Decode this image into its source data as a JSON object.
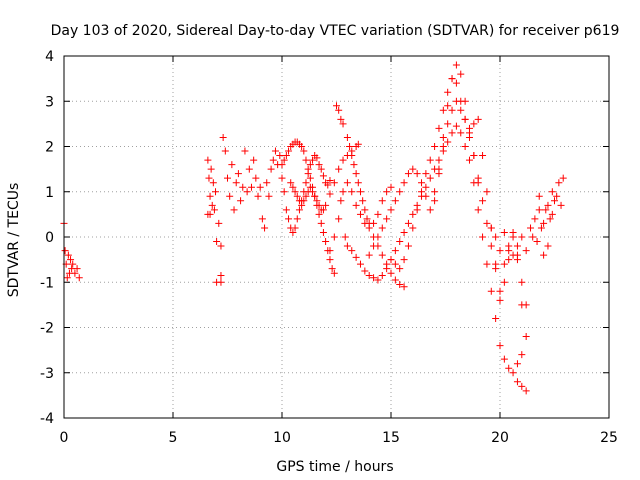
{
  "chart_data": {
    "type": "scatter",
    "title": "Day 103 of 2020, Sidereal Day-to-day VTEC variation (SDTVAR) for receiver p619",
    "xlabel": "GPS time / hours",
    "ylabel": "SDTVAR / TECUs",
    "xlim": [
      0,
      25
    ],
    "ylim": [
      -4,
      4
    ],
    "xticks": [
      "0",
      "5",
      "10",
      "15",
      "20",
      "25"
    ],
    "yticks": [
      "4",
      "3",
      "2",
      "1",
      "0",
      "-1",
      "-2",
      "-3",
      "-4"
    ],
    "grid": true,
    "marker": "+",
    "color": "#ff0000",
    "series": [
      {
        "name": "p619",
        "points": [
          [
            0.0,
            0.3
          ],
          [
            0.05,
            -0.3
          ],
          [
            0.1,
            -0.6
          ],
          [
            0.15,
            -0.9
          ],
          [
            0.2,
            -0.4
          ],
          [
            0.25,
            -0.8
          ],
          [
            0.3,
            -0.5
          ],
          [
            0.35,
            -0.7
          ],
          [
            0.4,
            -0.6
          ],
          [
            0.5,
            -0.8
          ],
          [
            0.6,
            -0.7
          ],
          [
            0.7,
            -0.9
          ],
          [
            6.6,
            0.5
          ],
          [
            6.6,
            1.7
          ],
          [
            6.65,
            1.3
          ],
          [
            6.7,
            0.9
          ],
          [
            6.7,
            0.5
          ],
          [
            6.75,
            1.5
          ],
          [
            6.8,
            0.7
          ],
          [
            6.85,
            1.2
          ],
          [
            6.9,
            0.6
          ],
          [
            6.95,
            1.0
          ],
          [
            7.0,
            -0.1
          ],
          [
            7.1,
            0.3
          ],
          [
            7.2,
            -0.2
          ],
          [
            7.0,
            -1.0
          ],
          [
            7.2,
            -1.0
          ],
          [
            7.2,
            -0.85
          ],
          [
            7.3,
            2.2
          ],
          [
            7.4,
            1.9
          ],
          [
            7.5,
            1.3
          ],
          [
            7.6,
            0.9
          ],
          [
            7.7,
            1.6
          ],
          [
            7.8,
            0.6
          ],
          [
            7.9,
            1.2
          ],
          [
            8.0,
            1.4
          ],
          [
            8.1,
            0.8
          ],
          [
            8.2,
            1.1
          ],
          [
            8.3,
            1.9
          ],
          [
            8.4,
            1.0
          ],
          [
            8.5,
            1.5
          ],
          [
            8.6,
            1.1
          ],
          [
            8.7,
            1.7
          ],
          [
            8.8,
            1.3
          ],
          [
            8.9,
            0.9
          ],
          [
            9.0,
            1.1
          ],
          [
            9.1,
            0.4
          ],
          [
            9.2,
            0.2
          ],
          [
            9.3,
            1.2
          ],
          [
            9.4,
            0.9
          ],
          [
            9.5,
            1.5
          ],
          [
            9.6,
            1.7
          ],
          [
            9.7,
            1.9
          ],
          [
            9.8,
            1.6
          ],
          [
            9.9,
            1.8
          ],
          [
            10.0,
            1.3
          ],
          [
            10.1,
            1.0
          ],
          [
            10.2,
            0.6
          ],
          [
            10.3,
            0.4
          ],
          [
            10.4,
            0.2
          ],
          [
            10.5,
            0.1
          ],
          [
            10.6,
            0.2
          ],
          [
            10.7,
            0.4
          ],
          [
            10.8,
            0.6
          ],
          [
            10.9,
            0.8
          ],
          [
            11.0,
            1.0
          ],
          [
            11.1,
            1.2
          ],
          [
            11.2,
            1.4
          ],
          [
            11.3,
            1.6
          ],
          [
            11.4,
            1.7
          ],
          [
            11.5,
            1.8
          ],
          [
            11.6,
            1.75
          ],
          [
            11.7,
            1.6
          ],
          [
            11.8,
            1.5
          ],
          [
            11.9,
            1.35
          ],
          [
            12.0,
            1.2
          ],
          [
            12.1,
            1.15
          ],
          [
            12.2,
            1.25
          ],
          [
            10.0,
            1.6
          ],
          [
            10.1,
            1.7
          ],
          [
            10.2,
            1.8
          ],
          [
            10.3,
            1.9
          ],
          [
            10.4,
            2.0
          ],
          [
            10.5,
            2.05
          ],
          [
            10.6,
            2.1
          ],
          [
            10.7,
            2.1
          ],
          [
            10.8,
            2.05
          ],
          [
            10.9,
            2.0
          ],
          [
            11.0,
            1.9
          ],
          [
            11.1,
            1.7
          ],
          [
            11.2,
            1.5
          ],
          [
            11.3,
            1.3
          ],
          [
            11.4,
            1.1
          ],
          [
            11.5,
            0.9
          ],
          [
            11.6,
            0.7
          ],
          [
            11.7,
            0.5
          ],
          [
            11.8,
            0.3
          ],
          [
            11.9,
            0.1
          ],
          [
            12.0,
            -0.1
          ],
          [
            12.1,
            -0.3
          ],
          [
            12.2,
            -0.5
          ],
          [
            12.3,
            -0.7
          ],
          [
            12.4,
            -0.8
          ],
          [
            10.4,
            1.2
          ],
          [
            10.5,
            1.1
          ],
          [
            10.6,
            1.0
          ],
          [
            10.7,
            0.9
          ],
          [
            10.8,
            0.8
          ],
          [
            10.9,
            0.7
          ],
          [
            11.0,
            0.8
          ],
          [
            11.1,
            0.9
          ],
          [
            11.2,
            1.0
          ],
          [
            11.3,
            1.1
          ],
          [
            11.4,
            1.0
          ],
          [
            11.5,
            0.9
          ],
          [
            11.6,
            0.8
          ],
          [
            11.7,
            0.7
          ],
          [
            11.8,
            0.6
          ],
          [
            11.9,
            0.6
          ],
          [
            12.0,
            0.7
          ],
          [
            12.2,
            0.95
          ],
          [
            12.4,
            1.2
          ],
          [
            12.6,
            1.5
          ],
          [
            12.8,
            1.7
          ],
          [
            13.0,
            1.8
          ],
          [
            13.2,
            1.9
          ],
          [
            13.4,
            2.0
          ],
          [
            13.5,
            2.05
          ],
          [
            12.2,
            -0.3
          ],
          [
            12.4,
            0.0
          ],
          [
            12.6,
            0.4
          ],
          [
            12.7,
            0.8
          ],
          [
            12.8,
            1.0
          ],
          [
            13.0,
            1.2
          ],
          [
            13.2,
            1.0
          ],
          [
            13.4,
            0.7
          ],
          [
            13.6,
            0.5
          ],
          [
            13.8,
            0.3
          ],
          [
            14.0,
            0.2
          ],
          [
            14.2,
            0.0
          ],
          [
            14.4,
            -0.2
          ],
          [
            14.6,
            -0.4
          ],
          [
            14.8,
            -0.6
          ],
          [
            15.0,
            -0.8
          ],
          [
            15.2,
            -0.95
          ],
          [
            15.4,
            -1.05
          ],
          [
            15.6,
            -1.1
          ],
          [
            12.5,
            2.9
          ],
          [
            12.6,
            2.8
          ],
          [
            12.7,
            2.6
          ],
          [
            12.8,
            2.5
          ],
          [
            13.0,
            2.2
          ],
          [
            13.1,
            2.0
          ],
          [
            13.2,
            1.8
          ],
          [
            13.3,
            1.6
          ],
          [
            13.4,
            1.4
          ],
          [
            13.5,
            1.2
          ],
          [
            13.6,
            1.0
          ],
          [
            13.7,
            0.8
          ],
          [
            13.8,
            0.6
          ],
          [
            13.9,
            0.4
          ],
          [
            14.0,
            0.3
          ],
          [
            14.2,
            0.3
          ],
          [
            14.4,
            0.5
          ],
          [
            14.6,
            0.8
          ],
          [
            14.8,
            1.0
          ],
          [
            15.0,
            1.1
          ],
          [
            12.9,
            0.0
          ],
          [
            13.0,
            -0.2
          ],
          [
            13.2,
            -0.3
          ],
          [
            13.4,
            -0.45
          ],
          [
            13.6,
            -0.6
          ],
          [
            13.8,
            -0.75
          ],
          [
            14.0,
            -0.85
          ],
          [
            14.2,
            -0.9
          ],
          [
            14.4,
            -0.95
          ],
          [
            14.6,
            -0.85
          ],
          [
            14.8,
            -0.7
          ],
          [
            15.0,
            -0.5
          ],
          [
            15.2,
            -0.3
          ],
          [
            15.4,
            -0.1
          ],
          [
            15.6,
            0.1
          ],
          [
            15.8,
            0.3
          ],
          [
            16.0,
            0.5
          ],
          [
            16.2,
            0.7
          ],
          [
            16.4,
            0.9
          ],
          [
            16.6,
            1.1
          ],
          [
            16.8,
            1.3
          ],
          [
            17.0,
            1.5
          ],
          [
            17.2,
            1.7
          ],
          [
            17.4,
            1.9
          ],
          [
            17.6,
            2.1
          ],
          [
            17.8,
            2.3
          ],
          [
            18.0,
            2.45
          ],
          [
            18.2,
            2.3
          ],
          [
            18.4,
            2.0
          ],
          [
            18.6,
            1.7
          ],
          [
            18.8,
            1.2
          ],
          [
            19.0,
            0.6
          ],
          [
            19.2,
            0.0
          ],
          [
            19.4,
            -0.6
          ],
          [
            19.6,
            -1.2
          ],
          [
            19.8,
            -1.8
          ],
          [
            14.0,
            -0.4
          ],
          [
            14.2,
            -0.2
          ],
          [
            14.4,
            0.0
          ],
          [
            14.6,
            0.2
          ],
          [
            14.8,
            0.4
          ],
          [
            15.0,
            0.6
          ],
          [
            15.2,
            0.8
          ],
          [
            15.4,
            1.0
          ],
          [
            15.6,
            1.2
          ],
          [
            15.8,
            1.4
          ],
          [
            16.0,
            1.5
          ],
          [
            16.2,
            1.4
          ],
          [
            16.4,
            1.2
          ],
          [
            16.6,
            0.9
          ],
          [
            16.8,
            0.6
          ],
          [
            17.0,
            0.8
          ],
          [
            17.2,
            1.5
          ],
          [
            17.4,
            2.2
          ],
          [
            17.6,
            2.9
          ],
          [
            17.8,
            3.5
          ],
          [
            18.0,
            3.8
          ],
          [
            18.2,
            3.6
          ],
          [
            18.4,
            3.0
          ],
          [
            18.6,
            2.4
          ],
          [
            18.8,
            1.8
          ],
          [
            19.0,
            1.2
          ],
          [
            15.0,
            -0.5
          ],
          [
            15.2,
            -0.6
          ],
          [
            15.4,
            -0.7
          ],
          [
            15.6,
            -0.5
          ],
          [
            15.8,
            -0.2
          ],
          [
            16.0,
            0.2
          ],
          [
            16.2,
            0.6
          ],
          [
            16.4,
            1.0
          ],
          [
            16.6,
            1.4
          ],
          [
            16.8,
            1.7
          ],
          [
            17.0,
            2.0
          ],
          [
            17.2,
            2.4
          ],
          [
            17.4,
            2.8
          ],
          [
            17.6,
            3.2
          ],
          [
            17.8,
            3.5
          ],
          [
            18.0,
            3.4
          ],
          [
            18.2,
            3.0
          ],
          [
            18.4,
            2.6
          ],
          [
            18.6,
            2.2
          ],
          [
            18.8,
            1.8
          ],
          [
            19.0,
            1.3
          ],
          [
            19.2,
            0.8
          ],
          [
            19.4,
            0.3
          ],
          [
            19.6,
            -0.2
          ],
          [
            19.8,
            -0.7
          ],
          [
            20.0,
            -1.2
          ],
          [
            17.0,
            1.0
          ],
          [
            17.2,
            1.4
          ],
          [
            17.4,
            2.0
          ],
          [
            17.6,
            2.5
          ],
          [
            17.8,
            2.8
          ],
          [
            18.0,
            3.0
          ],
          [
            18.2,
            2.8
          ],
          [
            18.4,
            2.6
          ],
          [
            18.6,
            2.3
          ],
          [
            18.8,
            2.5
          ],
          [
            19.0,
            2.6
          ],
          [
            19.2,
            1.8
          ],
          [
            19.4,
            1.0
          ],
          [
            19.6,
            0.2
          ],
          [
            19.8,
            -0.6
          ],
          [
            20.0,
            -1.4
          ],
          [
            20.2,
            -1.0
          ],
          [
            20.4,
            -0.5
          ],
          [
            20.6,
            0.0
          ],
          [
            20.8,
            -0.5
          ],
          [
            21.0,
            -1.0
          ],
          [
            21.2,
            -1.5
          ],
          [
            19.6,
            0.2
          ],
          [
            19.8,
            0.0
          ],
          [
            20.0,
            -0.3
          ],
          [
            20.2,
            -0.6
          ],
          [
            20.4,
            -0.3
          ],
          [
            20.6,
            0.1
          ],
          [
            20.8,
            -0.4
          ],
          [
            21.0,
            -1.5
          ],
          [
            21.2,
            -2.2
          ],
          [
            21.0,
            -2.6
          ],
          [
            20.8,
            -2.8
          ],
          [
            20.6,
            -3.0
          ],
          [
            20.8,
            -3.2
          ],
          [
            21.0,
            -3.3
          ],
          [
            21.2,
            -3.4
          ],
          [
            20.0,
            -2.4
          ],
          [
            20.2,
            -2.7
          ],
          [
            20.4,
            -2.9
          ],
          [
            20.2,
            0.1
          ],
          [
            20.4,
            -0.2
          ],
          [
            20.6,
            -0.4
          ],
          [
            20.8,
            -0.2
          ],
          [
            21.0,
            0.0
          ],
          [
            21.2,
            -0.3
          ],
          [
            21.4,
            0.2
          ],
          [
            21.6,
            0.4
          ],
          [
            21.8,
            0.6
          ],
          [
            22.0,
            0.3
          ],
          [
            22.2,
            0.7
          ],
          [
            22.4,
            0.5
          ],
          [
            22.6,
            0.9
          ],
          [
            22.8,
            0.7
          ],
          [
            22.9,
            1.3
          ],
          [
            22.7,
            1.2
          ],
          [
            22.5,
            0.8
          ],
          [
            22.3,
            0.4
          ],
          [
            22.1,
            0.6
          ],
          [
            21.9,
            0.2
          ],
          [
            21.7,
            -0.1
          ],
          [
            21.5,
            0.0
          ],
          [
            22.0,
            -0.4
          ],
          [
            22.2,
            -0.2
          ],
          [
            21.8,
            0.9
          ],
          [
            22.4,
            1.0
          ]
        ]
      }
    ]
  }
}
